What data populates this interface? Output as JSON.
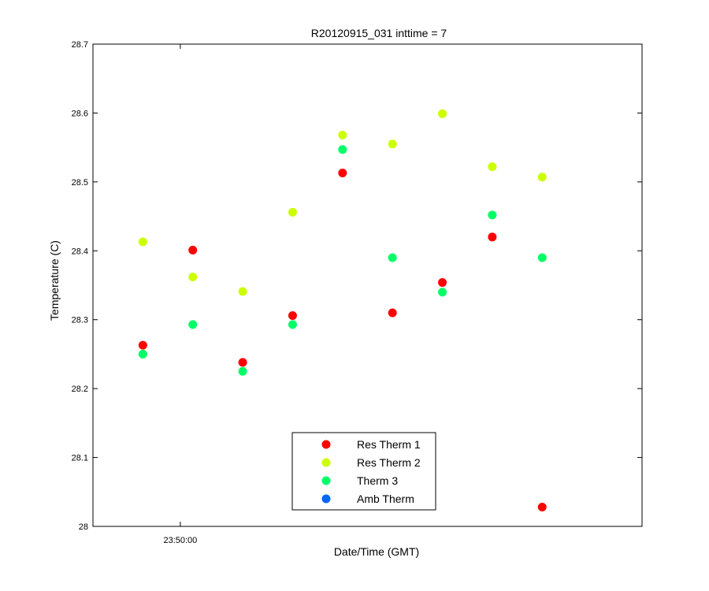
{
  "chart_data": {
    "type": "scatter",
    "title": "R20120915_031 inttime = 7",
    "xlabel": "Date/Time (GMT)",
    "ylabel": "Temperature (C)",
    "ylim": [
      28,
      28.7
    ],
    "yticks": [
      28,
      28.1,
      28.2,
      28.3,
      28.4,
      28.5,
      28.6,
      28.7
    ],
    "ytick_labels": [
      "28",
      "28.1",
      "28.2",
      "28.3",
      "28.4",
      "28.5",
      "28.6",
      "28.7"
    ],
    "xlim": [
      -1.75,
      9.25
    ],
    "xticks": [
      0
    ],
    "xtick_labels": [
      "23:50:00"
    ],
    "grid": false,
    "legend_position": "bottom-center",
    "series": [
      {
        "name": "Res Therm 1",
        "color": "#ff0000",
        "x": [
          -0.75,
          0.25,
          1.25,
          2.25,
          3.25,
          4.25,
          5.25,
          6.25,
          7.25
        ],
        "y": [
          28.263,
          28.401,
          28.238,
          28.306,
          28.513,
          28.31,
          28.354,
          28.42,
          28.028
        ]
      },
      {
        "name": "Res Therm 2",
        "color": "#ccff00",
        "x": [
          -0.75,
          0.25,
          1.25,
          2.25,
          3.25,
          4.25,
          5.25,
          6.25,
          7.25
        ],
        "y": [
          28.413,
          28.362,
          28.341,
          28.456,
          28.568,
          28.555,
          28.599,
          28.522,
          28.507
        ]
      },
      {
        "name": "Therm 3",
        "color": "#00ff66",
        "x": [
          -0.75,
          0.25,
          1.25,
          2.25,
          3.25,
          4.25,
          5.25,
          6.25,
          7.25
        ],
        "y": [
          28.25,
          28.293,
          28.225,
          28.293,
          28.547,
          28.39,
          28.34,
          28.452,
          28.39
        ]
      },
      {
        "name": "Amb Therm",
        "color": "#0066ff",
        "x": [],
        "y": []
      }
    ]
  }
}
